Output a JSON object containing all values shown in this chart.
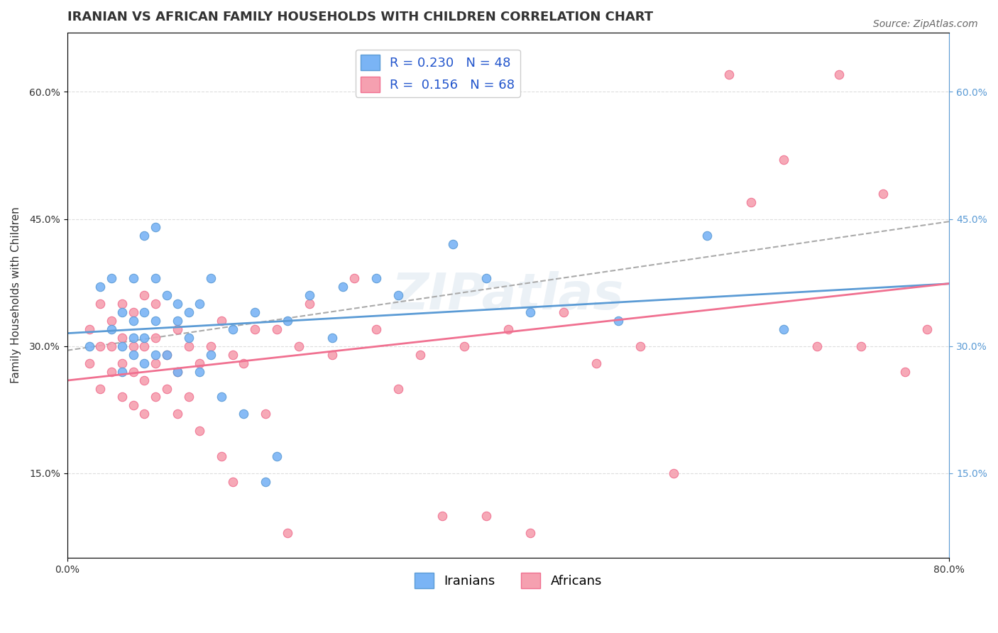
{
  "title": "IRANIAN VS AFRICAN FAMILY HOUSEHOLDS WITH CHILDREN CORRELATION CHART",
  "source": "Source: ZipAtlas.com",
  "ylabel": "Family Households with Children",
  "y_ticks": [
    0.15,
    0.3,
    0.45,
    0.6
  ],
  "y_tick_labels": [
    "15.0%",
    "30.0%",
    "45.0%",
    "60.0%"
  ],
  "xlim": [
    0.0,
    0.8
  ],
  "ylim": [
    0.05,
    0.67
  ],
  "legend_r_iranian": "0.230",
  "legend_n_iranian": "48",
  "legend_r_african": "0.156",
  "legend_n_african": "68",
  "color_iranian": "#7ab4f5",
  "color_african": "#f5a0b0",
  "color_trend_iranian": "#5b9bd5",
  "color_trend_african": "#f07090",
  "color_diagonal": "#aaaaaa",
  "watermark": "ZIPatlas",
  "iranians_x": [
    0.02,
    0.03,
    0.04,
    0.04,
    0.05,
    0.05,
    0.05,
    0.06,
    0.06,
    0.06,
    0.06,
    0.07,
    0.07,
    0.07,
    0.07,
    0.08,
    0.08,
    0.08,
    0.08,
    0.09,
    0.09,
    0.1,
    0.1,
    0.1,
    0.11,
    0.11,
    0.12,
    0.12,
    0.13,
    0.13,
    0.14,
    0.15,
    0.16,
    0.17,
    0.18,
    0.19,
    0.2,
    0.22,
    0.24,
    0.25,
    0.28,
    0.3,
    0.35,
    0.38,
    0.42,
    0.5,
    0.58,
    0.65
  ],
  "iranians_y": [
    0.3,
    0.37,
    0.32,
    0.38,
    0.27,
    0.3,
    0.34,
    0.29,
    0.31,
    0.33,
    0.38,
    0.28,
    0.31,
    0.34,
    0.43,
    0.29,
    0.33,
    0.38,
    0.44,
    0.29,
    0.36,
    0.27,
    0.33,
    0.35,
    0.31,
    0.34,
    0.27,
    0.35,
    0.29,
    0.38,
    0.24,
    0.32,
    0.22,
    0.34,
    0.14,
    0.17,
    0.33,
    0.36,
    0.31,
    0.37,
    0.38,
    0.36,
    0.42,
    0.38,
    0.34,
    0.33,
    0.43,
    0.32
  ],
  "africans_x": [
    0.02,
    0.02,
    0.03,
    0.03,
    0.03,
    0.04,
    0.04,
    0.04,
    0.05,
    0.05,
    0.05,
    0.05,
    0.06,
    0.06,
    0.06,
    0.06,
    0.07,
    0.07,
    0.07,
    0.07,
    0.08,
    0.08,
    0.08,
    0.08,
    0.09,
    0.09,
    0.1,
    0.1,
    0.1,
    0.11,
    0.11,
    0.12,
    0.12,
    0.13,
    0.14,
    0.14,
    0.15,
    0.15,
    0.16,
    0.17,
    0.18,
    0.19,
    0.2,
    0.21,
    0.22,
    0.24,
    0.26,
    0.28,
    0.3,
    0.32,
    0.34,
    0.36,
    0.38,
    0.4,
    0.42,
    0.45,
    0.48,
    0.52,
    0.55,
    0.6,
    0.62,
    0.65,
    0.68,
    0.7,
    0.72,
    0.74,
    0.76,
    0.78
  ],
  "africans_y": [
    0.28,
    0.32,
    0.25,
    0.3,
    0.35,
    0.27,
    0.3,
    0.33,
    0.24,
    0.28,
    0.31,
    0.35,
    0.23,
    0.27,
    0.3,
    0.34,
    0.22,
    0.26,
    0.3,
    0.36,
    0.24,
    0.28,
    0.31,
    0.35,
    0.25,
    0.29,
    0.22,
    0.27,
    0.32,
    0.24,
    0.3,
    0.2,
    0.28,
    0.3,
    0.17,
    0.33,
    0.14,
    0.29,
    0.28,
    0.32,
    0.22,
    0.32,
    0.08,
    0.3,
    0.35,
    0.29,
    0.38,
    0.32,
    0.25,
    0.29,
    0.1,
    0.3,
    0.1,
    0.32,
    0.08,
    0.34,
    0.28,
    0.3,
    0.15,
    0.62,
    0.47,
    0.52,
    0.3,
    0.62,
    0.3,
    0.48,
    0.27,
    0.32
  ],
  "grid_color": "#dddddd",
  "background_color": "#ffffff",
  "title_fontsize": 13,
  "axis_label_fontsize": 11,
  "tick_fontsize": 10,
  "legend_fontsize": 13,
  "source_fontsize": 10
}
